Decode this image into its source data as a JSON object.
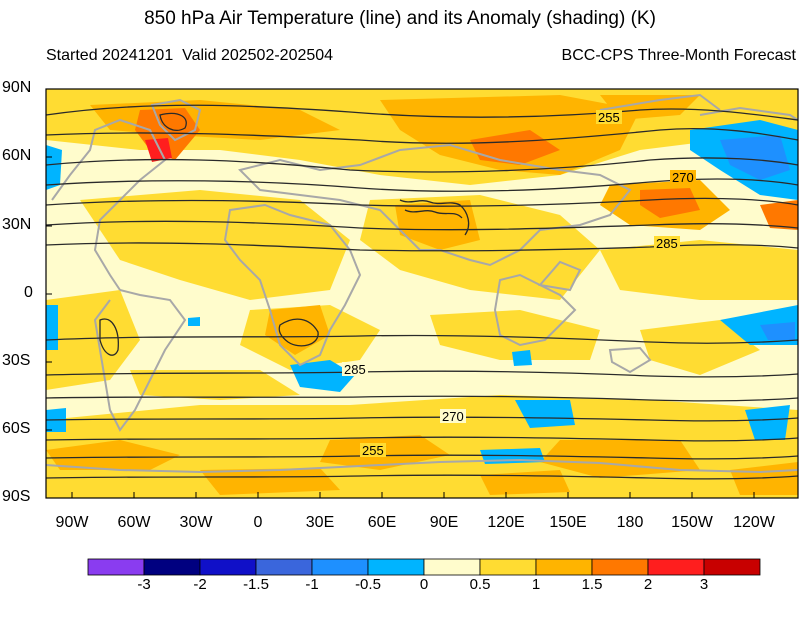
{
  "title": "850 hPa Air Temperature (line) and its Anomaly (shading) (K)",
  "subtitle_left": "Started 20241201  Valid 202502-202504",
  "subtitle_right": "BCC-CPS Three-Month Forecast",
  "lat_labels": [
    "90N",
    "60N",
    "30N",
    "0",
    "30S",
    "60S",
    "90S"
  ],
  "lon_labels": [
    "90W",
    "60W",
    "30W",
    "0",
    "30E",
    "60E",
    "90E",
    "120E",
    "150E",
    "180",
    "150W",
    "120W"
  ],
  "contour_labels": [
    "255",
    "270",
    "285",
    "285",
    "270",
    "255"
  ],
  "colorbar": {
    "tick_labels": [
      "-3",
      "-2",
      "-1.5",
      "-1",
      "-0.5",
      "0",
      "0.5",
      "1",
      "1.5",
      "2",
      "3"
    ],
    "colors": [
      "#8a3cf0",
      "#000080",
      "#1010c8",
      "#3a66dc",
      "#1e90ff",
      "#00b4ff",
      "#fffccc",
      "#ffdc32",
      "#ffb400",
      "#ff7800",
      "#ff1e1e",
      "#c80000"
    ]
  },
  "anomaly_colors": {
    "land_outline": "#a8a8a8",
    "contour_line": "#2a2a2a"
  }
}
